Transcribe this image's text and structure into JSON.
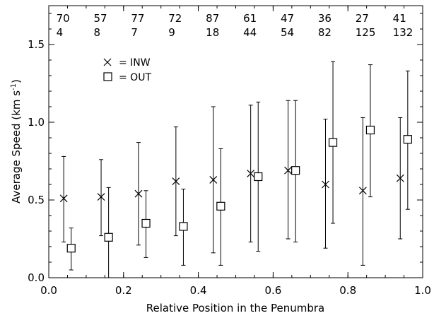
{
  "chart_data": {
    "type": "scatter",
    "xlabel": "Relative Position in the Penumbra",
    "ylabel": "Average Speed (km s",
    "ylabel_sup": "-1",
    "ylabel_close": ")",
    "xlim": [
      0.0,
      1.0
    ],
    "ylim": [
      0.0,
      1.75
    ],
    "xticks": [
      "0.0",
      "0.2",
      "0.4",
      "0.6",
      "0.8",
      "1.0"
    ],
    "yticks": [
      "0.0",
      "0.5",
      "1.0",
      "1.5"
    ],
    "legend": [
      {
        "marker": "cross",
        "label": "= INW"
      },
      {
        "marker": "square",
        "label": "= OUT"
      }
    ],
    "counts_inw": [
      "70",
      "57",
      "77",
      "72",
      "87",
      "61",
      "47",
      "36",
      "27",
      "41"
    ],
    "counts_out": [
      "4",
      "8",
      "7",
      "9",
      "18",
      "44",
      "54",
      "82",
      "125",
      "132"
    ],
    "series": [
      {
        "marker": "cross",
        "points": [
          {
            "x": 0.04,
            "y": 0.51,
            "lo": 0.23,
            "hi": 0.78
          },
          {
            "x": 0.14,
            "y": 0.52,
            "lo": 0.27,
            "hi": 0.76
          },
          {
            "x": 0.24,
            "y": 0.54,
            "lo": 0.21,
            "hi": 0.87
          },
          {
            "x": 0.34,
            "y": 0.62,
            "lo": 0.27,
            "hi": 0.97
          },
          {
            "x": 0.44,
            "y": 0.63,
            "lo": 0.16,
            "hi": 1.1
          },
          {
            "x": 0.54,
            "y": 0.67,
            "lo": 0.23,
            "hi": 1.11
          },
          {
            "x": 0.64,
            "y": 0.69,
            "lo": 0.25,
            "hi": 1.14
          },
          {
            "x": 0.74,
            "y": 0.6,
            "lo": 0.19,
            "hi": 1.02
          },
          {
            "x": 0.84,
            "y": 0.56,
            "lo": 0.08,
            "hi": 1.03
          },
          {
            "x": 0.94,
            "y": 0.64,
            "lo": 0.25,
            "hi": 1.03
          }
        ]
      },
      {
        "marker": "square",
        "points": [
          {
            "x": 0.06,
            "y": 0.19,
            "lo": 0.05,
            "hi": 0.32
          },
          {
            "x": 0.16,
            "y": 0.26,
            "lo": -0.06,
            "hi": 0.58
          },
          {
            "x": 0.26,
            "y": 0.35,
            "lo": 0.13,
            "hi": 0.56
          },
          {
            "x": 0.36,
            "y": 0.33,
            "lo": 0.08,
            "hi": 0.57
          },
          {
            "x": 0.46,
            "y": 0.46,
            "lo": 0.08,
            "hi": 0.83
          },
          {
            "x": 0.56,
            "y": 0.65,
            "lo": 0.17,
            "hi": 1.13
          },
          {
            "x": 0.66,
            "y": 0.69,
            "lo": 0.23,
            "hi": 1.14
          },
          {
            "x": 0.76,
            "y": 0.87,
            "lo": 0.35,
            "hi": 1.39
          },
          {
            "x": 0.86,
            "y": 0.95,
            "lo": 0.52,
            "hi": 1.37
          },
          {
            "x": 0.96,
            "y": 0.89,
            "lo": 0.44,
            "hi": 1.33
          }
        ]
      }
    ]
  }
}
